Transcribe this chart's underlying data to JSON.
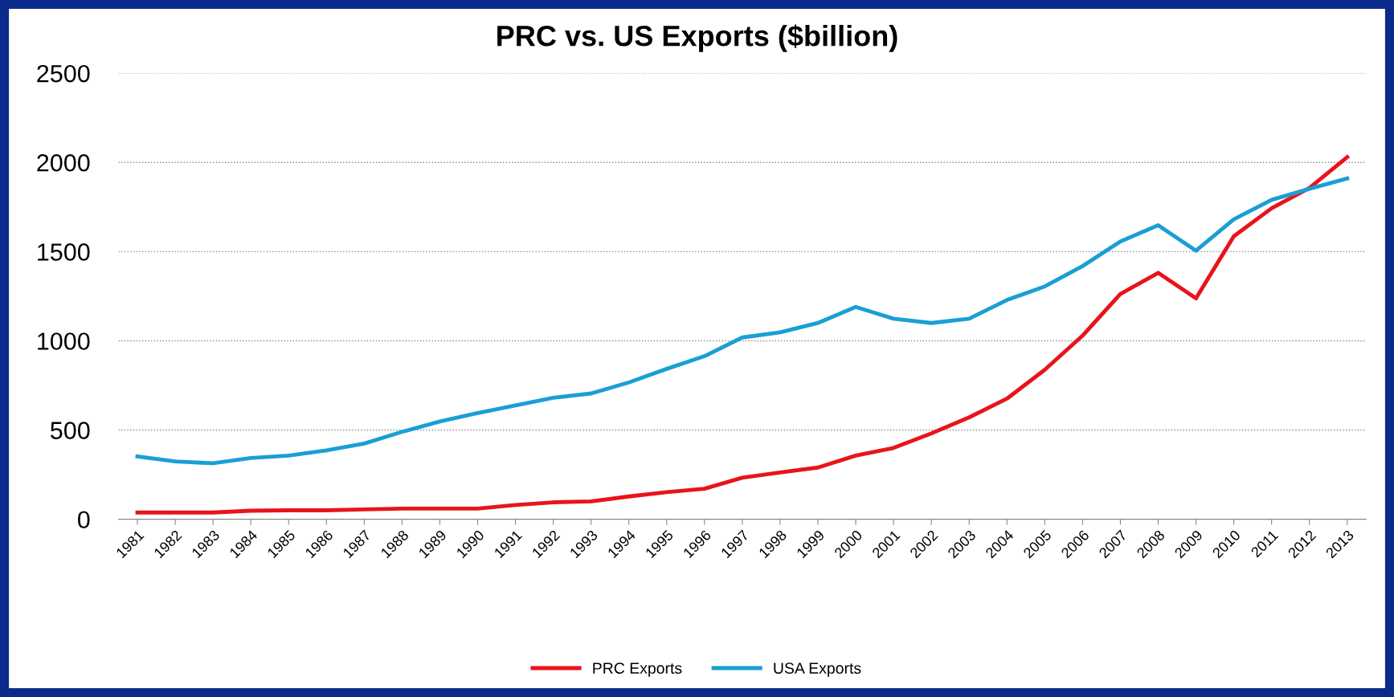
{
  "chart_data": {
    "type": "line",
    "title": "PRC vs. US Exports ($billion)",
    "categories": [
      "1981",
      "1982",
      "1983",
      "1984",
      "1985",
      "1986",
      "1987",
      "1988",
      "1989",
      "1990",
      "1991",
      "1992",
      "1993",
      "1994",
      "1995",
      "1996",
      "1997",
      "1998",
      "1999",
      "2000",
      "2001",
      "2002",
      "2003",
      "2004",
      "2005",
      "2006",
      "2007",
      "2008",
      "2009",
      "2010",
      "2011",
      "2012",
      "2013"
    ],
    "series": [
      {
        "name": "PRC Exports",
        "color": "#e8141a",
        "values": [
          38,
          38,
          38,
          48,
          50,
          50,
          55,
          60,
          60,
          60,
          80,
          95,
          100,
          128,
          152,
          171,
          233,
          262,
          290,
          357,
          400,
          481,
          571,
          676,
          838,
          1029,
          1262,
          1381,
          1238,
          1586,
          1743,
          1857,
          2030
        ]
      },
      {
        "name": "USA Exports",
        "color": "#1a9fd4",
        "values": [
          352,
          324,
          314,
          343,
          357,
          386,
          424,
          490,
          548,
          595,
          638,
          681,
          705,
          767,
          843,
          914,
          1019,
          1048,
          1100,
          1190,
          1124,
          1100,
          1124,
          1229,
          1305,
          1419,
          1557,
          1648,
          1505,
          1681,
          1790,
          1852,
          1910
        ]
      }
    ],
    "ylim": [
      0,
      2500
    ],
    "yticks": [
      0,
      500,
      1000,
      1500,
      2000,
      2500
    ],
    "grid": "y",
    "legend": "bottom",
    "marker": "none",
    "line_style": "solid"
  }
}
